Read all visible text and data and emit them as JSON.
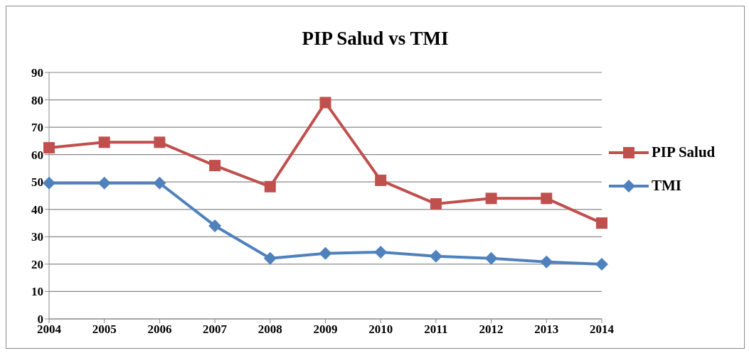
{
  "chart_data": {
    "type": "line",
    "title": "PIP Salud vs TMI",
    "categories": [
      "2004",
      "2005",
      "2006",
      "2007",
      "2008",
      "2009",
      "2010",
      "2011",
      "2012",
      "2013",
      "2014"
    ],
    "series": [
      {
        "name": "PIP Salud",
        "color": "#c0504d",
        "marker": "square",
        "values": [
          62.5,
          64.5,
          64.5,
          56,
          48.3,
          79,
          50.6,
          42,
          44,
          44,
          35
        ]
      },
      {
        "name": "TMI",
        "color": "#4f81bd",
        "marker": "diamond",
        "values": [
          49.6,
          49.6,
          49.6,
          34,
          22.1,
          23.9,
          24.4,
          22.9,
          22.1,
          20.8,
          20
        ]
      }
    ],
    "ylim": [
      0,
      90
    ],
    "yticks": [
      0,
      10,
      20,
      30,
      40,
      50,
      60,
      70,
      80,
      90
    ],
    "grid": "y",
    "legend": "right",
    "line_style": "solid"
  }
}
